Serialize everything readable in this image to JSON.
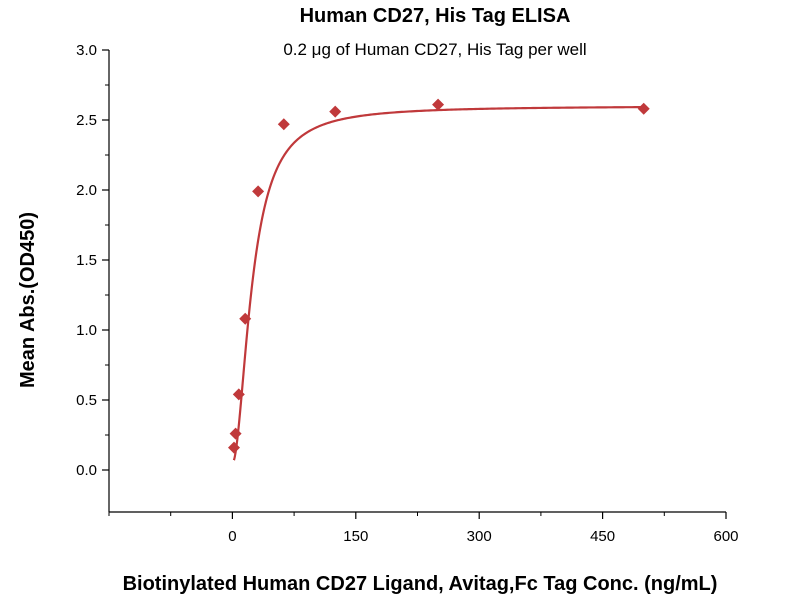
{
  "chart_data": {
    "type": "scatter",
    "title": "Human CD27, His Tag ELISA",
    "subtitle": "0.2 μg of Human CD27, His Tag per well",
    "xlabel": "Biotinylated Human CD27 Ligand, Avitag,Fc Tag Conc. (ng/mL)",
    "ylabel": "Mean Abs.(OD450)",
    "xlim": [
      -150,
      600
    ],
    "ylim": [
      -0.3,
      3.0
    ],
    "xticks": [
      0,
      150,
      300,
      450,
      600
    ],
    "yticks": [
      0.0,
      0.5,
      1.0,
      1.5,
      2.0,
      2.5,
      3.0
    ],
    "xtick_labels": [
      "0",
      "150",
      "300",
      "450",
      "600"
    ],
    "ytick_labels": [
      "0.0",
      "0.5",
      "1.0",
      "1.5",
      "2.0",
      "2.5",
      "3.0"
    ],
    "grid": false,
    "color": "#c0393b",
    "series": [
      {
        "x": [
          1.95,
          3.9,
          7.8,
          15.6,
          31.25,
          62.5,
          125,
          250,
          500
        ],
        "y": [
          0.16,
          0.26,
          0.54,
          1.08,
          1.99,
          2.47,
          2.56,
          2.61,
          2.58
        ]
      }
    ]
  }
}
